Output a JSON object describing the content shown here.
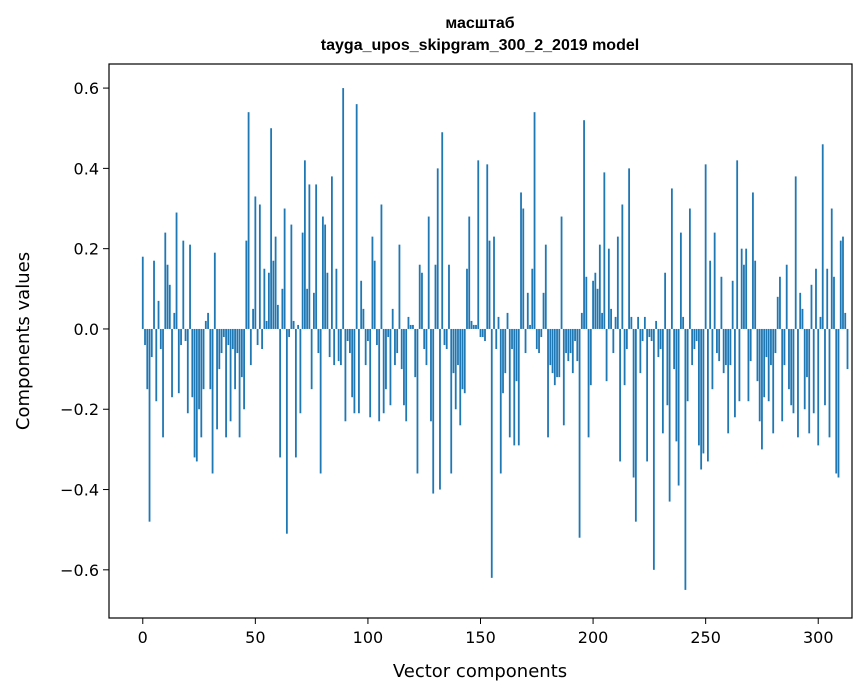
{
  "chart_data": {
    "type": "bar",
    "title": "масштаб",
    "subtitle": "tayga_upos_skipgram_300_2_2019 model",
    "xlabel": "Vector components",
    "ylabel": "Components values",
    "xlim": [
      -15,
      315
    ],
    "ylim": [
      -0.72,
      0.66
    ],
    "xticks": [
      0,
      50,
      100,
      150,
      200,
      250,
      300
    ],
    "xtick_labels": [
      "0",
      "50",
      "100",
      "150",
      "200",
      "250",
      "300"
    ],
    "yticks": [
      -0.6,
      -0.4,
      -0.2,
      0.0,
      0.2,
      0.4,
      0.6
    ],
    "ytick_labels": [
      "−0.6",
      "−0.4",
      "−0.2",
      "0.0",
      "0.2",
      "0.4",
      "0.6"
    ],
    "grid": false,
    "bar_color": "#1f77b4",
    "series": [
      {
        "values": [
          0.18,
          -0.04,
          -0.15,
          -0.48,
          -0.07,
          0.17,
          -0.18,
          0.07,
          -0.05,
          -0.27,
          0.24,
          0.16,
          0.11,
          -0.17,
          0.04,
          0.29,
          -0.16,
          -0.04,
          0.22,
          -0.03,
          -0.21,
          0.21,
          -0.17,
          -0.32,
          -0.33,
          -0.2,
          -0.27,
          -0.15,
          0.02,
          0.04,
          -0.15,
          -0.36,
          0.19,
          -0.25,
          -0.1,
          -0.06,
          -0.02,
          -0.27,
          -0.04,
          -0.23,
          -0.05,
          -0.15,
          -0.06,
          -0.27,
          -0.12,
          -0.2,
          0.22,
          0.54,
          -0.09,
          0.05,
          0.33,
          -0.04,
          0.31,
          -0.05,
          0.15,
          0.02,
          0.14,
          0.5,
          0.17,
          0.23,
          0.06,
          -0.32,
          0.1,
          0.3,
          -0.51,
          -0.02,
          0.26,
          0.02,
          -0.32,
          0.01,
          -0.21,
          0.24,
          0.42,
          0.1,
          0.36,
          -0.15,
          0.09,
          0.36,
          -0.06,
          -0.36,
          0.28,
          0.26,
          0.14,
          -0.07,
          0.38,
          -0.09,
          0.15,
          -0.08,
          -0.09,
          0.6,
          -0.23,
          -0.03,
          -0.06,
          -0.17,
          -0.21,
          0.56,
          -0.21,
          0.12,
          0.05,
          -0.09,
          -0.03,
          -0.22,
          0.23,
          0.17,
          -0.04,
          -0.23,
          0.31,
          -0.21,
          -0.15,
          -0.02,
          -0.19,
          0.05,
          -0.09,
          -0.06,
          0.21,
          -0.1,
          -0.19,
          -0.23,
          0.03,
          0.01,
          0.01,
          -0.12,
          -0.36,
          0.16,
          0.14,
          -0.05,
          -0.09,
          0.28,
          -0.23,
          -0.41,
          0.16,
          0.4,
          -0.4,
          0.49,
          -0.04,
          -0.05,
          0.16,
          -0.36,
          -0.11,
          -0.2,
          -0.09,
          -0.24,
          -0.15,
          -0.16,
          0.15,
          0.28,
          0.02,
          0.01,
          0.01,
          0.42,
          -0.02,
          -0.02,
          -0.03,
          0.41,
          0.22,
          -0.62,
          0.23,
          -0.05,
          0.03,
          -0.36,
          -0.16,
          -0.11,
          0.04,
          -0.27,
          -0.05,
          -0.29,
          -0.13,
          -0.29,
          0.34,
          0.3,
          -0.06,
          0.09,
          0.01,
          0.15,
          0.54,
          -0.05,
          -0.06,
          -0.02,
          0.09,
          0.21,
          -0.27,
          -0.09,
          -0.11,
          -0.14,
          -0.12,
          -0.12,
          0.28,
          -0.24,
          -0.06,
          -0.08,
          -0.06,
          -0.11,
          -0.03,
          -0.08,
          -0.52,
          0.04,
          0.52,
          0.13,
          -0.27,
          -0.14,
          0.12,
          0.14,
          0.1,
          0.21,
          0.04,
          0.39,
          -0.13,
          0.2,
          0.05,
          -0.06,
          0.03,
          0.23,
          -0.33,
          0.31,
          -0.14,
          -0.05,
          0.4,
          0.03,
          -0.37,
          -0.48,
          0.03,
          -0.11,
          -0.03,
          0.03,
          -0.33,
          -0.02,
          -0.03,
          -0.6,
          0.02,
          -0.07,
          -0.05,
          -0.26,
          0.14,
          -0.19,
          -0.43,
          0.35,
          -0.1,
          -0.28,
          -0.39,
          0.24,
          0.03,
          -0.65,
          -0.18,
          0.3,
          -0.09,
          -0.05,
          -0.03,
          -0.29,
          -0.35,
          -0.31,
          0.41,
          -0.33,
          0.17,
          -0.15,
          0.24,
          -0.06,
          -0.08,
          0.13,
          -0.11,
          -0.09,
          -0.26,
          -0.09,
          0.12,
          -0.22,
          0.42,
          -0.18,
          0.2,
          0.16,
          0.2,
          -0.18,
          -0.08,
          0.34,
          0.17,
          -0.13,
          -0.23,
          -0.3,
          -0.17,
          -0.07,
          -0.18,
          -0.09,
          -0.26,
          -0.06,
          0.08,
          0.13,
          -0.23,
          -0.09,
          0.16,
          -0.15,
          -0.19,
          -0.21,
          0.38,
          -0.27,
          0.09,
          0.05,
          -0.2,
          -0.12,
          -0.26,
          0.11,
          -0.21,
          0.15,
          -0.29,
          0.03,
          0.46,
          -0.19,
          0.15,
          -0.27,
          0.3,
          0.13,
          -0.36,
          -0.37,
          0.22,
          0.23,
          0.04,
          -0.1
        ]
      }
    ]
  }
}
